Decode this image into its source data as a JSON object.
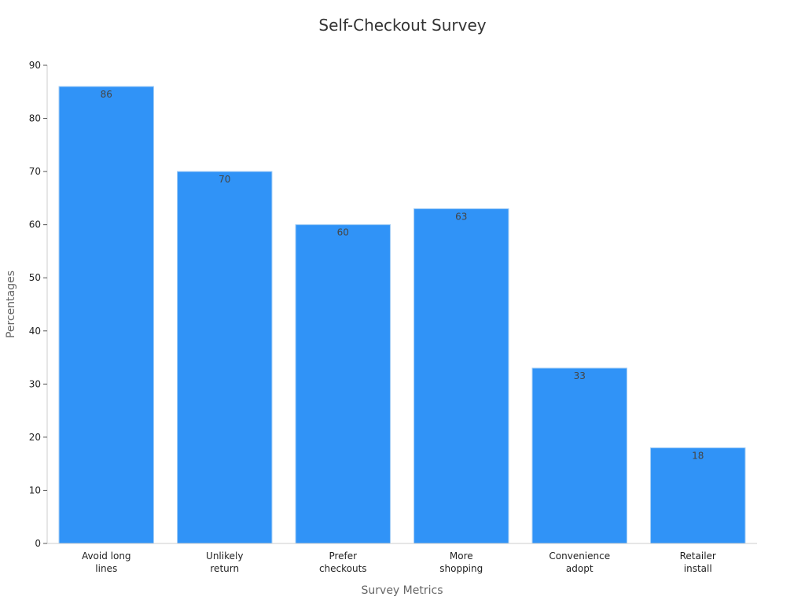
{
  "chart_data": {
    "type": "bar",
    "title": "Self-Checkout Survey",
    "xlabel": "Survey Metrics",
    "ylabel": "Percentages",
    "categories": [
      [
        "Avoid long",
        "lines"
      ],
      [
        "Unlikely",
        "return"
      ],
      [
        "Prefer",
        "checkouts"
      ],
      [
        "More",
        "shopping"
      ],
      [
        "Convenience",
        "adopt"
      ],
      [
        "Retailer",
        "install"
      ]
    ],
    "values": [
      86,
      70,
      60,
      63,
      33,
      18
    ],
    "ylim": [
      0,
      90
    ],
    "yticks": [
      0,
      10,
      20,
      30,
      40,
      50,
      60,
      70,
      80,
      90
    ],
    "grid": false,
    "legend": "none",
    "bar_color": "#3093F7",
    "bar_edge_color": "#9fcbf5"
  }
}
